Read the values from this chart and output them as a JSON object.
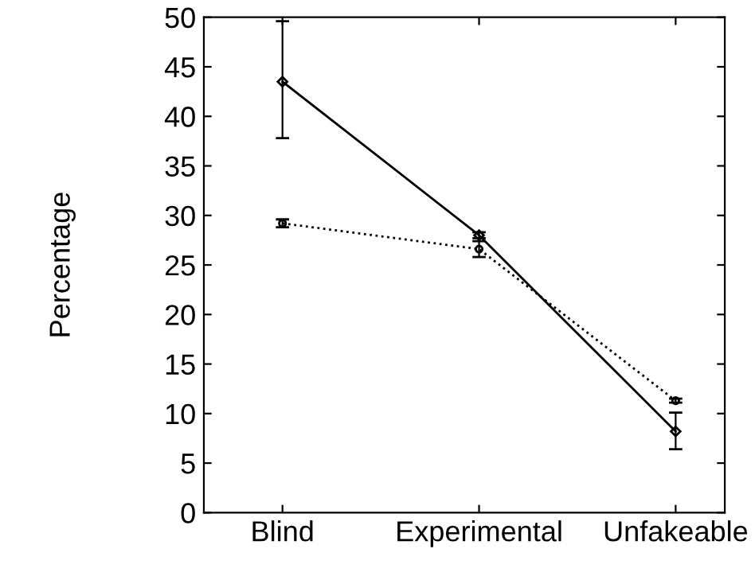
{
  "chart_data": {
    "type": "line",
    "ylabel": "Percentage",
    "categories": [
      "Blind",
      "Experimental",
      "Unfakeable"
    ],
    "ylim": [
      0,
      50
    ],
    "yticks": [
      0,
      5,
      10,
      15,
      20,
      25,
      30,
      35,
      40,
      45,
      50
    ],
    "grid": false,
    "legend": false,
    "series": [
      {
        "color": "#000000",
        "values": [
          43.5,
          28.0,
          8.2
        ],
        "errors": [
          [
            37.8,
            49.6
          ],
          [
            27.7,
            28.3
          ],
          [
            6.4,
            10.1
          ]
        ],
        "line_style": "solid",
        "marker": "diamond"
      },
      {
        "color": "#000000",
        "values": [
          29.2,
          26.6,
          11.3
        ],
        "errors": [
          [
            28.8,
            29.6
          ],
          [
            25.8,
            27.4
          ],
          [
            11.1,
            11.5
          ]
        ],
        "line_style": "dotted",
        "marker": "circle"
      }
    ]
  }
}
